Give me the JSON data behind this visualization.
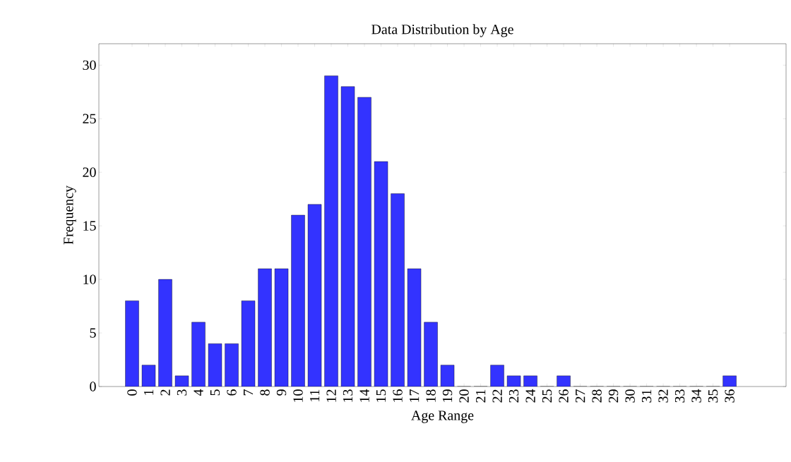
{
  "chart_data": {
    "type": "bar",
    "title": "Data Distribution by Age",
    "xlabel": "Age Range",
    "ylabel": "Frequency",
    "categories": [
      "0",
      "1",
      "2",
      "3",
      "4",
      "5",
      "6",
      "7",
      "8",
      "9",
      "10",
      "11",
      "12",
      "13",
      "14",
      "15",
      "16",
      "17",
      "18",
      "19",
      "20",
      "21",
      "22",
      "23",
      "24",
      "25",
      "26",
      "27",
      "28",
      "29",
      "30",
      "31",
      "32",
      "33",
      "34",
      "35",
      "36"
    ],
    "values": [
      8,
      2,
      10,
      1,
      6,
      4,
      4,
      8,
      11,
      11,
      16,
      17,
      29,
      28,
      27,
      21,
      18,
      11,
      6,
      2,
      0,
      0,
      2,
      1,
      1,
      0,
      1,
      0,
      0,
      0,
      0,
      0,
      0,
      0,
      0,
      0,
      1
    ],
    "color": "#3333ff",
    "ylim": [
      0,
      32
    ],
    "yticks": [
      0,
      5,
      10,
      15,
      20,
      25,
      30
    ]
  }
}
